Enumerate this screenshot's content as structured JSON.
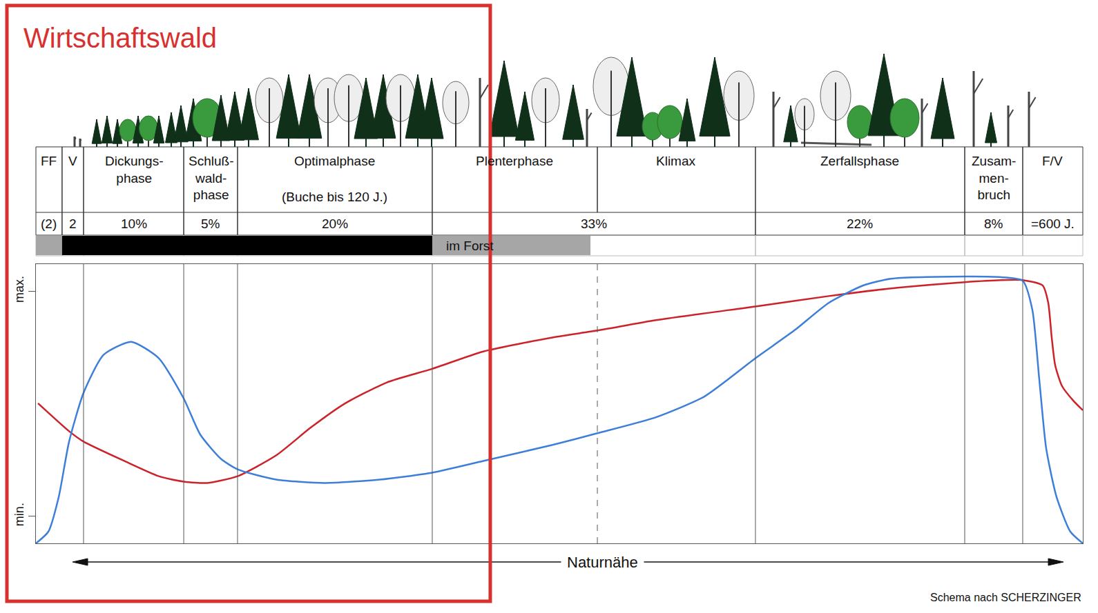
{
  "chart_data": {
    "type": "line",
    "xlim": [
      0,
      100
    ],
    "ylim": [
      -1.2,
      11.2
    ],
    "yticks": [
      {
        "value": 0,
        "label": "min."
      },
      {
        "value": 10,
        "label": "max."
      }
    ],
    "tick_labels": "y",
    "grid": false,
    "xlabel": "Naturnähe",
    "source": "Schema nach SCHERZINGER",
    "highlight": {
      "label": "Wirtschaftswald",
      "color": "#d8302f",
      "end": 43.4
    },
    "phases": [
      {
        "lines": [
          "FF"
        ],
        "start": 0,
        "end": 2.5
      },
      {
        "lines": [
          "V"
        ],
        "start": 2.5,
        "end": 4.55
      },
      {
        "lines": [
          "Dickungs-",
          "phase"
        ],
        "start": 4.55,
        "end": 14.12
      },
      {
        "lines": [
          "Schluß-",
          "wald-",
          "phase"
        ],
        "start": 14.12,
        "end": 19.26
      },
      {
        "lines": [
          "Optimalphase"
        ],
        "note": "(Buche bis 120 J.)",
        "start": 19.26,
        "end": 37.86
      },
      {
        "lines": [
          "Plenterphase"
        ],
        "start": 37.86,
        "end": 53.63
      },
      {
        "lines": [
          "Klimax"
        ],
        "start": 53.63,
        "end": 68.73
      },
      {
        "lines": [
          "Zerfallsphase"
        ],
        "start": 68.73,
        "end": 88.72
      },
      {
        "lines": [
          "Zusam-",
          "men-",
          "bruch"
        ],
        "start": 88.72,
        "end": 94.26
      },
      {
        "lines": [
          "F/V"
        ],
        "start": 94.26,
        "end": 100
      }
    ],
    "shares": [
      {
        "label": "(2)",
        "start": 0,
        "end": 2.5
      },
      {
        "label": "2",
        "start": 2.5,
        "end": 4.55
      },
      {
        "label": "10%",
        "start": 4.55,
        "end": 14.12
      },
      {
        "label": "5%",
        "start": 14.12,
        "end": 19.26
      },
      {
        "label": "20%",
        "start": 19.26,
        "end": 37.86
      },
      {
        "label": "33%",
        "start": 37.86,
        "end": 68.73
      },
      {
        "label": "22%",
        "start": 68.73,
        "end": 88.72
      },
      {
        "label": "8%",
        "start": 88.72,
        "end": 94.26
      },
      {
        "label": "=600 J.",
        "start": 94.26,
        "end": 100
      }
    ],
    "forestry_bar": [
      {
        "start": 0,
        "end": 2.5,
        "color": "#a6a6a6"
      },
      {
        "start": 2.5,
        "end": 37.86,
        "color": "#000000"
      },
      {
        "start": 37.86,
        "end": 52.97,
        "color": "#a6a6a6",
        "label": "im Forst"
      }
    ],
    "dividers": [
      {
        "x": 4.55
      },
      {
        "x": 14.12
      },
      {
        "x": 19.26
      },
      {
        "x": 37.86
      },
      {
        "x": 53.63,
        "line_style": "dashed"
      },
      {
        "x": 68.73
      },
      {
        "x": 88.72
      },
      {
        "x": 94.26
      }
    ],
    "series": [
      {
        "color": "#cc2229",
        "x": [
          0.2,
          3.17,
          4.55,
          8.44,
          11.74,
          14.12,
          16.36,
          19.26,
          22.96,
          26.25,
          29.55,
          33.5,
          37.86,
          42.74,
          49.34,
          53.63,
          59.23,
          68.73,
          75.73,
          82.32,
          88.72,
          92.22,
          94.26,
          96.17,
          96.7,
          97.03,
          97.36,
          98.02,
          99.14,
          100
        ],
        "values": [
          5.02,
          3.78,
          3.32,
          2.46,
          1.78,
          1.54,
          1.48,
          1.78,
          2.71,
          3.94,
          5.02,
          5.94,
          6.55,
          7.32,
          7.94,
          8.25,
          8.71,
          9.32,
          9.78,
          10.15,
          10.4,
          10.49,
          10.49,
          10.25,
          9.48,
          7.94,
          6.71,
          5.78,
          5.11,
          4.71
        ]
      },
      {
        "color": "#3d7fd8",
        "x": [
          0,
          1.19,
          2.18,
          3.17,
          4.55,
          6.46,
          9.1,
          11.74,
          14.12,
          15.7,
          17.68,
          19.26,
          22.96,
          27.57,
          32.85,
          37.86,
          42.74,
          49.34,
          53.63,
          59.23,
          63.85,
          68.73,
          72.43,
          75.73,
          79.02,
          81.66,
          88.72,
          92.22,
          94.26,
          95.18,
          95.84,
          96.5,
          97.49,
          98.81,
          100
        ],
        "values": [
          -1.2,
          -0.68,
          0.86,
          3.32,
          5.48,
          7.17,
          7.75,
          7.02,
          5.23,
          3.63,
          2.55,
          2.09,
          1.63,
          1.48,
          1.63,
          1.94,
          2.46,
          3.17,
          3.69,
          4.4,
          5.32,
          7.02,
          8.25,
          9.48,
          10.25,
          10.55,
          10.65,
          10.62,
          10.46,
          9.17,
          6.09,
          3.02,
          0.86,
          -0.68,
          -1.2
        ]
      }
    ]
  }
}
